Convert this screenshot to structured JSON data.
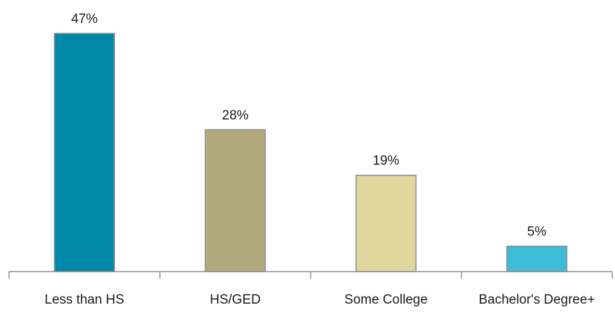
{
  "chart_data": {
    "type": "bar",
    "categories": [
      "Less than HS",
      "HS/GED",
      "Some College",
      "Bachelor's Degree+"
    ],
    "values": [
      47,
      28,
      19,
      5
    ],
    "data_labels": [
      "47%",
      "28%",
      "19%",
      "5%"
    ],
    "colors": [
      "#0089A9",
      "#B2AA7D",
      "#E0D79E",
      "#3DBCD8"
    ],
    "bar_border_color": "#8C8C8C",
    "axis_color": "#8C8C8C",
    "ylim": [
      0,
      50
    ],
    "grid": false,
    "legend": "none",
    "title": "",
    "xlabel": "",
    "ylabel": ""
  }
}
